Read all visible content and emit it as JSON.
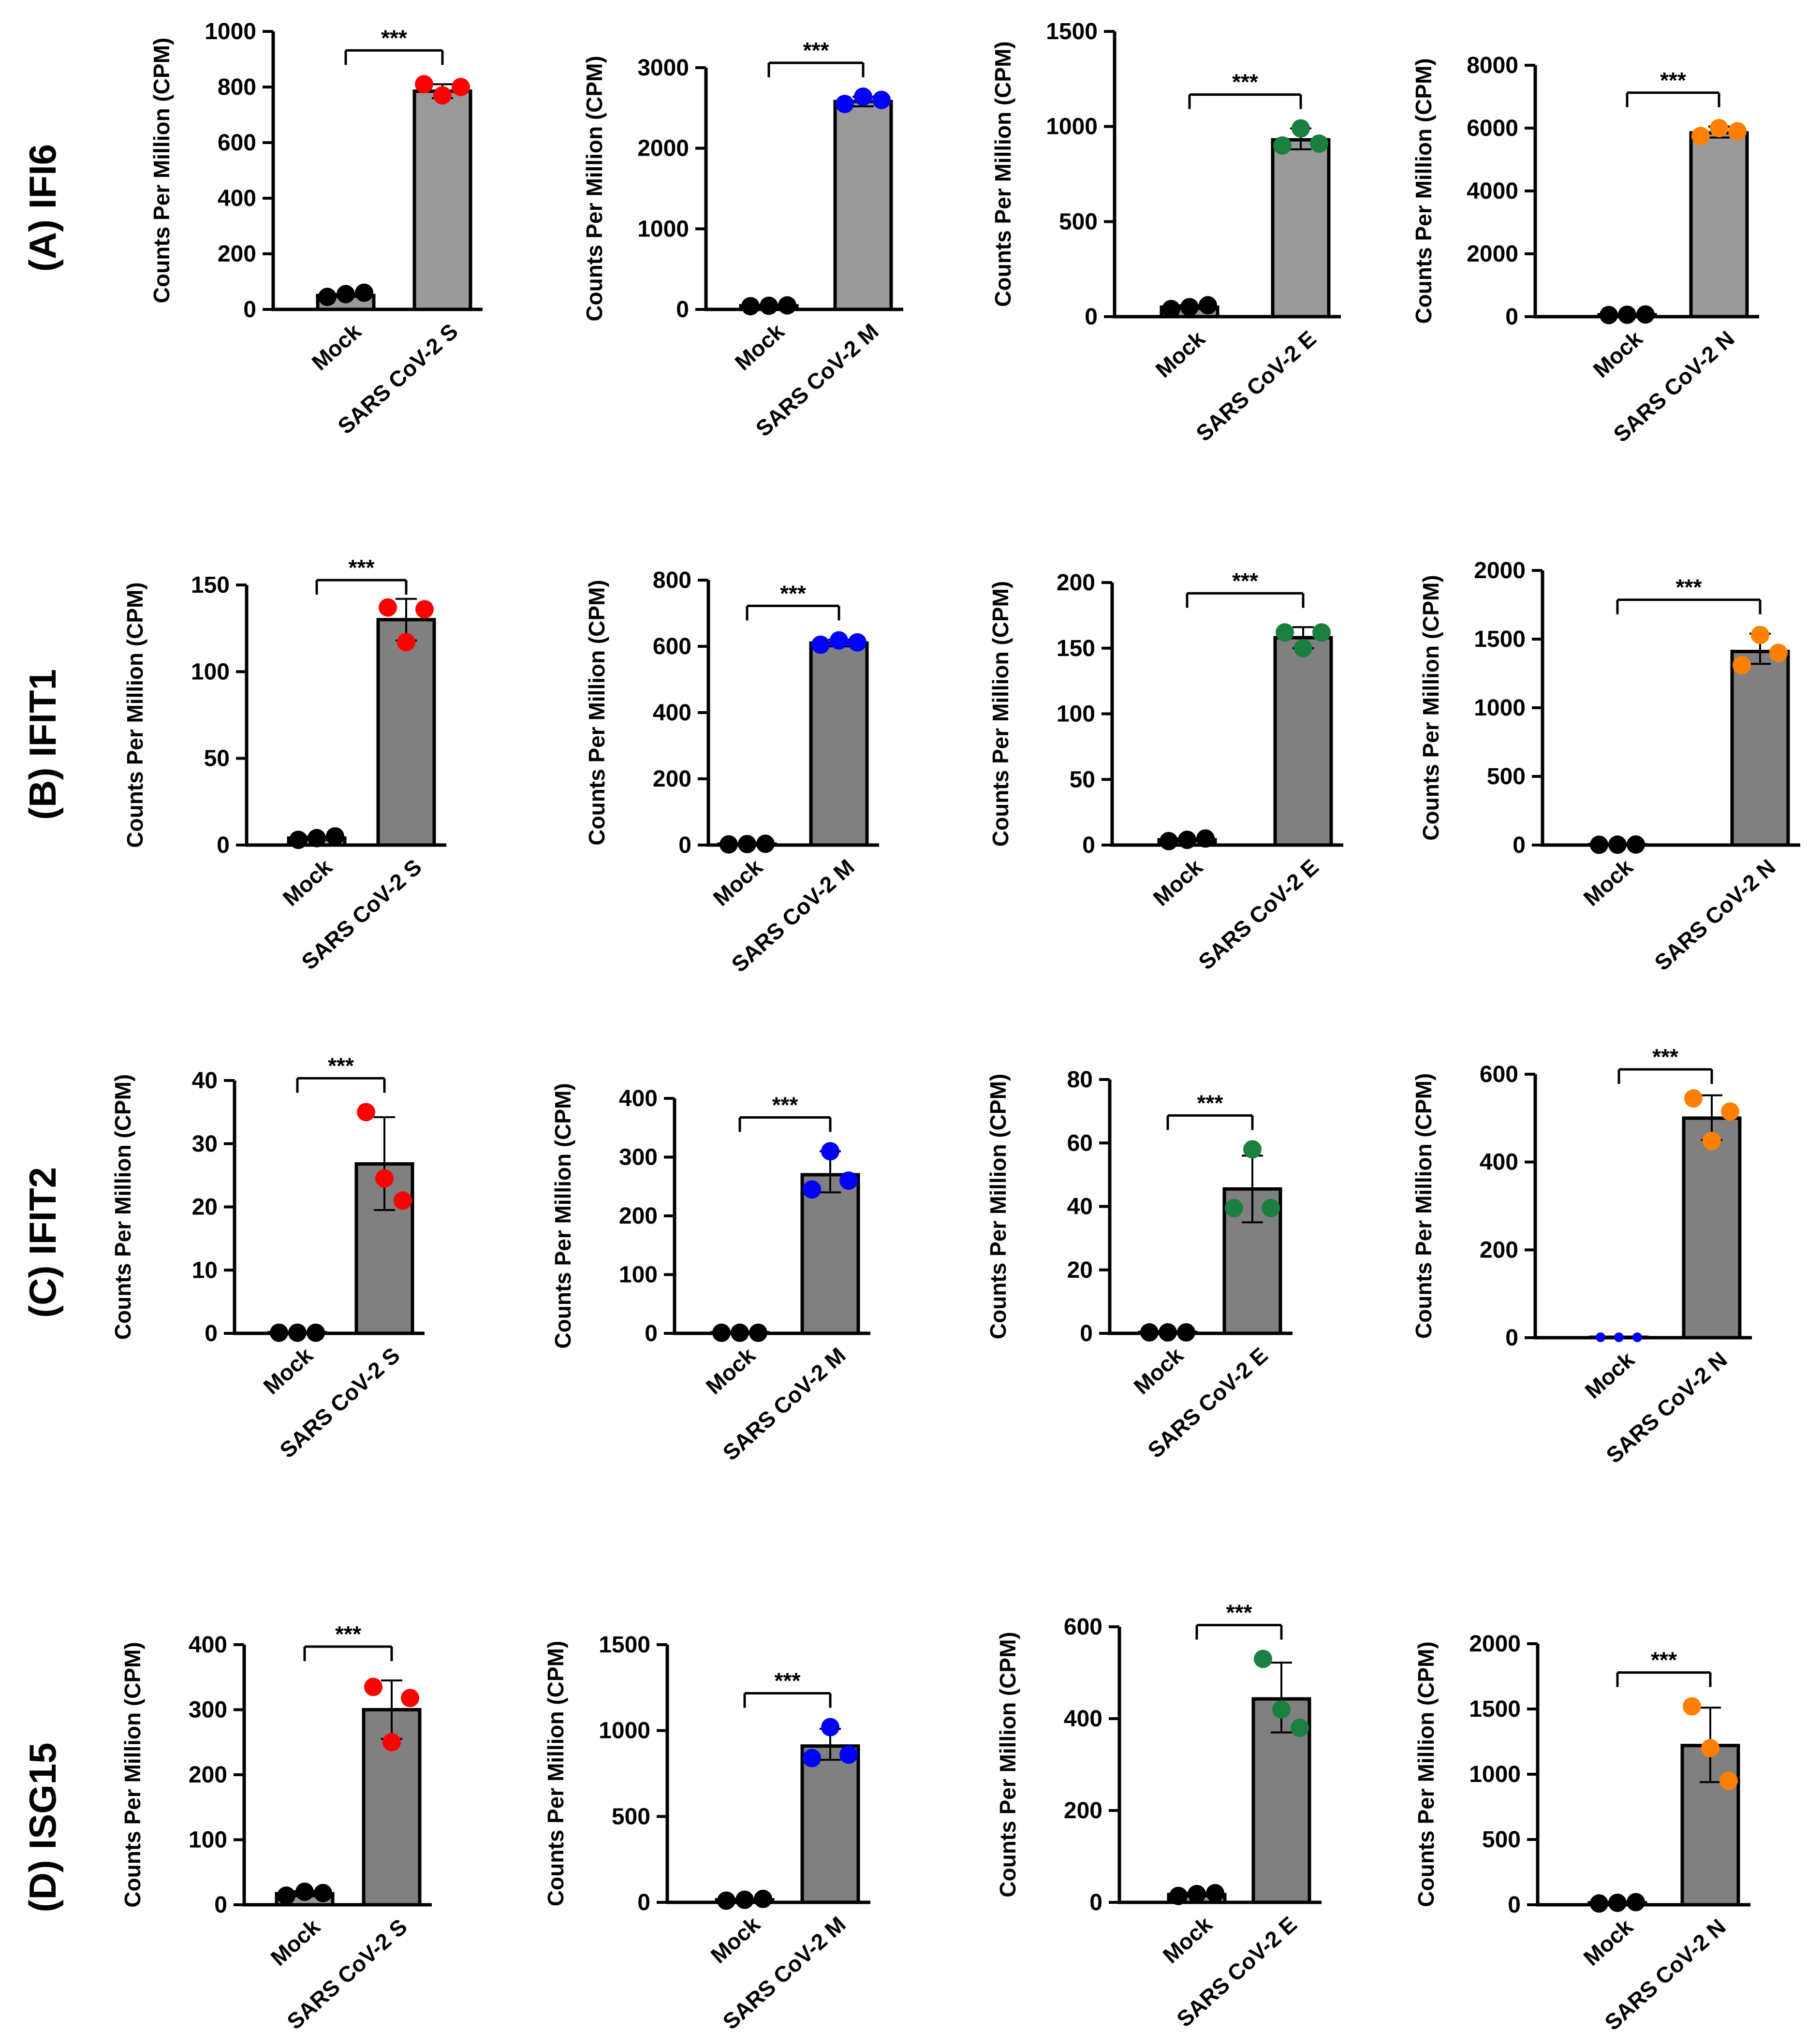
{
  "figure": {
    "rows": [
      {
        "label": "(A) IFI6"
      },
      {
        "label": "(B) IFIT1"
      },
      {
        "label": "(C) IFIT2"
      },
      {
        "label": "(D) ISG15"
      }
    ],
    "significance": "***",
    "ylabel": "Counts Per Million (CPM)"
  },
  "chart_data": [
    {
      "id": "A1",
      "type": "bar",
      "title": "(A) IFI6",
      "ylabel": "Counts Per Million (CPM)",
      "categories": [
        "Mock",
        "SARS CoV-2 S"
      ],
      "ylim": [
        0,
        1000
      ],
      "yticks": [
        0,
        200,
        400,
        600,
        800,
        1000
      ],
      "values": [
        50,
        785
      ],
      "errors": [
        [
          45,
          55
        ],
        [
          760,
          810
        ]
      ],
      "points": [
        [
          45,
          55,
          60
        ],
        [
          810,
          770,
          800
        ]
      ],
      "point_color": "#ff0000",
      "significance": "***"
    },
    {
      "id": "A2",
      "type": "bar",
      "title": "(A) IFI6",
      "ylabel": "Counts Per Million (CPM)",
      "categories": [
        "Mock",
        "SARS CoV-2 M"
      ],
      "ylim": [
        0,
        3000
      ],
      "yticks": [
        0,
        1000,
        2000,
        3000
      ],
      "values": [
        45,
        2580
      ],
      "errors": [
        [
          40,
          50
        ],
        [
          2520,
          2640
        ]
      ],
      "points": [
        [
          40,
          45,
          50
        ],
        [
          2550,
          2640,
          2600
        ]
      ],
      "point_color": "#0000ff",
      "significance": "***"
    },
    {
      "id": "A3",
      "type": "bar",
      "title": "(A) IFI6",
      "ylabel": "Counts Per Million (CPM)",
      "categories": [
        "Mock",
        "SARS CoV-2 E"
      ],
      "ylim": [
        0,
        1500
      ],
      "yticks": [
        0,
        500,
        1000,
        1500
      ],
      "values": [
        50,
        930
      ],
      "errors": [
        [
          40,
          60
        ],
        [
          880,
          990
        ]
      ],
      "points": [
        [
          40,
          50,
          60
        ],
        [
          900,
          990,
          910
        ]
      ],
      "point_color": "#1a8040",
      "significance": "***"
    },
    {
      "id": "A4",
      "type": "bar",
      "title": "(A) IFI6",
      "ylabel": "Counts Per Million (CPM)",
      "categories": [
        "Mock",
        "SARS CoV-2 N"
      ],
      "ylim": [
        0,
        8000
      ],
      "yticks": [
        0,
        2000,
        4000,
        6000,
        8000
      ],
      "values": [
        60,
        5850
      ],
      "errors": [
        [
          50,
          70
        ],
        [
          5700,
          6050
        ]
      ],
      "points": [
        [
          50,
          60,
          70
        ],
        [
          5750,
          6000,
          5900
        ]
      ],
      "point_color": "#ff8000",
      "significance": "***"
    },
    {
      "id": "B1",
      "type": "bar",
      "title": "(B) IFIT1",
      "ylabel": "Counts Per Million (CPM)",
      "categories": [
        "Mock",
        "SARS CoV-2 S"
      ],
      "ylim": [
        0,
        150
      ],
      "yticks": [
        0,
        50,
        100,
        150
      ],
      "values": [
        4,
        130
      ],
      "errors": [
        [
          3,
          5
        ],
        [
          118,
          142
        ]
      ],
      "points": [
        [
          3,
          4,
          5
        ],
        [
          137,
          117,
          136
        ]
      ],
      "point_color": "#ff0000",
      "significance": "***"
    },
    {
      "id": "B2",
      "type": "bar",
      "title": "(B) IFIT1",
      "ylabel": "Counts Per Million (CPM)",
      "categories": [
        "Mock",
        "SARS CoV-2 M"
      ],
      "ylim": [
        0,
        800
      ],
      "yticks": [
        0,
        200,
        400,
        600,
        800
      ],
      "values": [
        3,
        610
      ],
      "errors": [
        [
          2,
          4
        ],
        [
          600,
          620
        ]
      ],
      "points": [
        [
          2,
          3,
          4
        ],
        [
          605,
          618,
          612
        ]
      ],
      "point_color": "#0000ff",
      "significance": "***"
    },
    {
      "id": "B3",
      "type": "bar",
      "title": "(B) IFIT1",
      "ylabel": "Counts Per Million (CPM)",
      "categories": [
        "Mock",
        "SARS CoV-2 E"
      ],
      "ylim": [
        0,
        200
      ],
      "yticks": [
        0,
        50,
        100,
        150,
        200
      ],
      "values": [
        4,
        158
      ],
      "errors": [
        [
          3,
          5
        ],
        [
          150,
          166
        ]
      ],
      "points": [
        [
          3,
          4,
          5
        ],
        [
          162,
          150,
          162
        ]
      ],
      "point_color": "#1a8040",
      "significance": "***"
    },
    {
      "id": "B4",
      "type": "bar",
      "title": "(B) IFIT1",
      "ylabel": "Counts Per Million (CPM)",
      "categories": [
        "Mock",
        "SARS CoV-2 N"
      ],
      "ylim": [
        0,
        2000
      ],
      "yticks": [
        0,
        500,
        1000,
        1500,
        2000
      ],
      "values": [
        3,
        1410
      ],
      "errors": [
        [
          2,
          4
        ],
        [
          1320,
          1540
        ]
      ],
      "points": [
        [
          2,
          3,
          4
        ],
        [
          1310,
          1530,
          1400
        ]
      ],
      "point_color": "#ff8000",
      "significance": "***"
    },
    {
      "id": "C1",
      "type": "bar",
      "title": "(C) IFIT2",
      "ylabel": "Counts Per Million (CPM)",
      "categories": [
        "Mock",
        "SARS CoV-2 S"
      ],
      "ylim": [
        0,
        40
      ],
      "yticks": [
        0,
        10,
        20,
        30,
        40
      ],
      "values": [
        0.1,
        26.8
      ],
      "errors": [
        [
          0.05,
          0.15
        ],
        [
          19.5,
          34.2
        ]
      ],
      "points": [
        [
          0.1,
          0.1,
          0.1
        ],
        [
          35,
          24.5,
          21
        ]
      ],
      "point_color": "#ff0000",
      "significance": "***"
    },
    {
      "id": "C2",
      "type": "bar",
      "title": "(C) IFIT2",
      "ylabel": "Counts Per Million (CPM)",
      "categories": [
        "Mock",
        "SARS CoV-2 M"
      ],
      "ylim": [
        0,
        400
      ],
      "yticks": [
        0,
        100,
        200,
        300,
        400
      ],
      "values": [
        1,
        270
      ],
      "errors": [
        [
          0.5,
          1.5
        ],
        [
          240,
          310
        ]
      ],
      "points": [
        [
          1,
          1,
          1
        ],
        [
          245,
          310,
          260
        ]
      ],
      "point_color": "#0000ff",
      "significance": "***"
    },
    {
      "id": "C3",
      "type": "bar",
      "title": "(C) IFIT2",
      "ylabel": "Counts Per Million (CPM)",
      "categories": [
        "Mock",
        "SARS CoV-2 E"
      ],
      "ylim": [
        0,
        80
      ],
      "yticks": [
        0,
        20,
        40,
        60,
        80
      ],
      "values": [
        0.3,
        45.5
      ],
      "errors": [
        [
          0.2,
          0.4
        ],
        [
          35,
          56
        ]
      ],
      "points": [
        [
          0.3,
          0.3,
          0.3
        ],
        [
          39.5,
          58,
          39.5
        ]
      ],
      "point_color": "#1a8040",
      "significance": "***"
    },
    {
      "id": "C4",
      "type": "bar",
      "title": "(C) IFIT2",
      "ylabel": "Counts Per Million (CPM)",
      "categories": [
        "Mock",
        "SARS CoV-2 N"
      ],
      "ylim": [
        0,
        600
      ],
      "yticks": [
        0,
        200,
        400,
        600
      ],
      "values": [
        1,
        500
      ],
      "errors": [
        [
          0.5,
          1.5
        ],
        [
          450,
          552
        ]
      ],
      "points": [
        [
          1,
          1,
          1
        ],
        [
          545,
          448,
          515
        ]
      ],
      "point_color": "#ff8000",
      "mock_color": "#0000ff",
      "significance": "***"
    },
    {
      "id": "D1",
      "type": "bar",
      "title": "(D) ISG15",
      "ylabel": "Counts Per Million (CPM)",
      "categories": [
        "Mock",
        "SARS CoV-2 S"
      ],
      "ylim": [
        0,
        400
      ],
      "yticks": [
        0,
        100,
        200,
        300,
        400
      ],
      "values": [
        17,
        300
      ],
      "errors": [
        [
          13,
          21
        ],
        [
          255,
          345
        ]
      ],
      "points": [
        [
          14,
          20,
          18
        ],
        [
          335,
          250,
          318
        ]
      ],
      "point_color": "#ff0000",
      "significance": "***"
    },
    {
      "id": "D2",
      "type": "bar",
      "title": "(D) ISG15",
      "ylabel": "Counts Per Million (CPM)",
      "categories": [
        "Mock",
        "SARS CoV-2 M"
      ],
      "ylim": [
        0,
        1500
      ],
      "yticks": [
        0,
        500,
        1000,
        1500
      ],
      "values": [
        15,
        910
      ],
      "errors": [
        [
          10,
          20
        ],
        [
          830,
          1010
        ]
      ],
      "points": [
        [
          10,
          15,
          20
        ],
        [
          840,
          1020,
          860
        ]
      ],
      "point_color": "#0000ff",
      "significance": "***"
    },
    {
      "id": "D3",
      "type": "bar",
      "title": "(D) ISG15",
      "ylabel": "Counts Per Million (CPM)",
      "categories": [
        "Mock",
        "SARS CoV-2 E"
      ],
      "ylim": [
        0,
        600
      ],
      "yticks": [
        0,
        200,
        400,
        600
      ],
      "values": [
        17,
        443
      ],
      "errors": [
        [
          13,
          21
        ],
        [
          370,
          522
        ]
      ],
      "points": [
        [
          14,
          18,
          20
        ],
        [
          530,
          420,
          380
        ]
      ],
      "point_color": "#1a8040",
      "significance": "***"
    },
    {
      "id": "D4",
      "type": "bar",
      "title": "(D) ISG15",
      "ylabel": "Counts Per Million (CPM)",
      "categories": [
        "Mock",
        "SARS CoV-2 N"
      ],
      "ylim": [
        0,
        2000
      ],
      "yticks": [
        0,
        500,
        1000,
        1500,
        2000
      ],
      "values": [
        15,
        1220
      ],
      "errors": [
        [
          10,
          20
        ],
        [
          940,
          1510
        ]
      ],
      "points": [
        [
          10,
          15,
          20
        ],
        [
          1520,
          1200,
          950
        ]
      ],
      "point_color": "#ff8000",
      "significance": "***"
    }
  ]
}
